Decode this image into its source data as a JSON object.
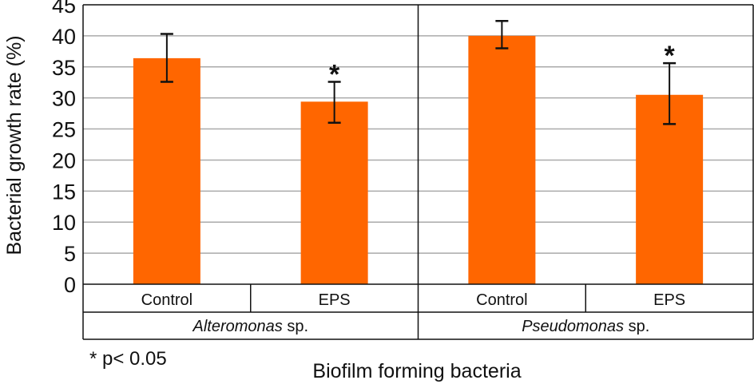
{
  "chart_data": {
    "type": "bar",
    "ylabel": "Bacterial growth rate (%)",
    "xlabel": "Biofilm forming bacteria",
    "ylim": [
      0,
      45
    ],
    "yticks": [
      0,
      5,
      10,
      15,
      20,
      25,
      30,
      35,
      40,
      45
    ],
    "grid": true,
    "bar_color": "#FF6600",
    "groups": [
      "Alteromonas",
      "Pseudomonas"
    ],
    "group_suffix": " sp.",
    "categories": [
      "Control",
      "EPS",
      "Control",
      "EPS"
    ],
    "values": [
      36.4,
      29.4,
      40.0,
      30.5
    ],
    "error_low": [
      32.6,
      26.0,
      38.0,
      25.8
    ],
    "error_high": [
      40.3,
      32.6,
      42.4,
      35.6
    ],
    "significance": [
      "",
      "*",
      "",
      "*"
    ],
    "note": "* p< 0.05"
  }
}
